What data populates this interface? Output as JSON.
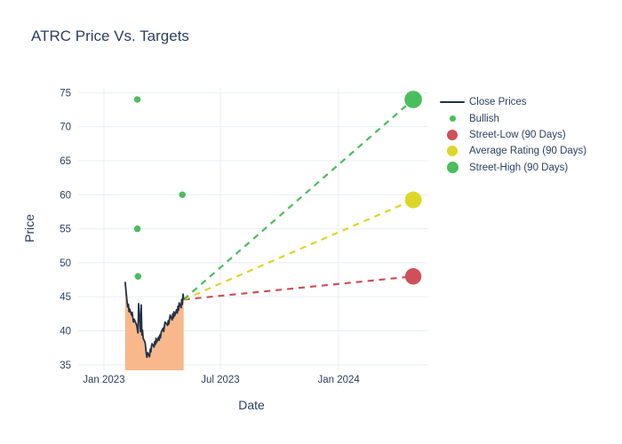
{
  "title": "ATRC Price Vs. Targets",
  "colors": {
    "background": "#ffffff",
    "text": "#2a3f5f",
    "grid": "#e8eef7",
    "close_line": "#233247",
    "close_fill": "#f8b88c",
    "bullish_green": "#4abd5c",
    "street_low_red": "#cf5058",
    "average_yellow": "#dcd727",
    "street_high_green": "#4abd5c"
  },
  "legend": {
    "items": [
      {
        "label": "Close Prices",
        "symbol": "line",
        "color": "#233247"
      },
      {
        "label": "Bullish",
        "symbol": "dot-small",
        "color": "#4abd5c"
      },
      {
        "label": "Street-Low (90 Days)",
        "symbol": "dot-big",
        "color": "#cf5058"
      },
      {
        "label": "Average Rating (90 Days)",
        "symbol": "dot-big",
        "color": "#dcd727"
      },
      {
        "label": "Street-High (90 Days)",
        "symbol": "dot-bigger",
        "color": "#4abd5c"
      }
    ]
  },
  "chart_data": {
    "type": "line",
    "title": "ATRC Price Vs. Targets",
    "xlabel": "Date",
    "ylabel": "Price",
    "xlim": [
      "2022-11-22",
      "2024-05-18"
    ],
    "ylim": [
      34.2,
      75.7
    ],
    "grid": true,
    "legend_position": "right-outside",
    "x_ticks": [
      {
        "date": "2023-01-01",
        "label": "Jan 2023"
      },
      {
        "date": "2023-07-01",
        "label": "Jul 2023"
      },
      {
        "date": "2024-01-01",
        "label": "Jan 2024"
      }
    ],
    "y_ticks": [
      35,
      40,
      45,
      50,
      55,
      60,
      65,
      70,
      75
    ],
    "close_prices": {
      "name": "Close Prices",
      "color": "#233247",
      "fill": "tozeroy",
      "fill_color": "#f8b88c",
      "dates": [
        "2023-02-03",
        "2023-02-06",
        "2023-02-07",
        "2023-02-08",
        "2023-02-09",
        "2023-02-10",
        "2023-02-13",
        "2023-02-14",
        "2023-02-15",
        "2023-02-16",
        "2023-02-17",
        "2023-02-21",
        "2023-02-22",
        "2023-02-23",
        "2023-02-24",
        "2023-02-27",
        "2023-02-28",
        "2023-03-01",
        "2023-03-02",
        "2023-03-03",
        "2023-03-06",
        "2023-03-07",
        "2023-03-08",
        "2023-03-09",
        "2023-03-10",
        "2023-03-13",
        "2023-03-14",
        "2023-03-15",
        "2023-03-16",
        "2023-03-17",
        "2023-03-20",
        "2023-03-21",
        "2023-03-22",
        "2023-03-23",
        "2023-03-24",
        "2023-03-27",
        "2023-03-28",
        "2023-03-29",
        "2023-03-30",
        "2023-03-31",
        "2023-04-03",
        "2023-04-04",
        "2023-04-05",
        "2023-04-06",
        "2023-04-10",
        "2023-04-11",
        "2023-04-12",
        "2023-04-13",
        "2023-04-14",
        "2023-04-17",
        "2023-04-18",
        "2023-04-19",
        "2023-04-20",
        "2023-04-21",
        "2023-04-24",
        "2023-04-25",
        "2023-04-26",
        "2023-04-27",
        "2023-04-28",
        "2023-05-01",
        "2023-05-02",
        "2023-05-03",
        "2023-05-04",
        "2023-05-05"
      ],
      "values": [
        47.2,
        44.3,
        43.5,
        43.9,
        42.8,
        43.2,
        42.3,
        42.7,
        41.9,
        41.3,
        41.7,
        40.8,
        40.2,
        39.7,
        44.0,
        39.9,
        43.8,
        39.4,
        40.1,
        38.9,
        38.3,
        37.5,
        36.6,
        36.1,
        36.8,
        36.2,
        37.3,
        36.9,
        37.8,
        38.1,
        37.6,
        38.4,
        38.0,
        38.9,
        38.3,
        39.1,
        38.6,
        39.4,
        39.0,
        39.8,
        40.4,
        39.9,
        40.7,
        41.3,
        40.8,
        41.5,
        41.0,
        41.8,
        42.3,
        41.6,
        42.5,
        41.9,
        42.8,
        42.2,
        43.1,
        42.6,
        43.6,
        43.0,
        44.1,
        43.4,
        44.6,
        43.9,
        45.4,
        44.6
      ]
    },
    "bullish": {
      "name": "Bullish",
      "color": "#4abd5c",
      "points": [
        {
          "date": "2023-02-22",
          "value": 74
        },
        {
          "date": "2023-02-22",
          "value": 55
        },
        {
          "date": "2023-02-23",
          "value": 48
        },
        {
          "date": "2023-05-03",
          "value": 60
        }
      ]
    },
    "targets": {
      "origin": {
        "date": "2023-05-05",
        "value": 44.6
      },
      "date": "2024-04-26",
      "items": [
        {
          "name": "Street-Low (90 Days)",
          "value": 48,
          "color": "#cf5058",
          "radius": 9.2
        },
        {
          "name": "Average Rating (90 Days)",
          "value": 59.25,
          "color": "#dcd727",
          "radius": 9.4
        },
        {
          "name": "Street-High (90 Days)",
          "value": 74,
          "color": "#4abd5c",
          "radius": 9.8
        }
      ]
    }
  }
}
